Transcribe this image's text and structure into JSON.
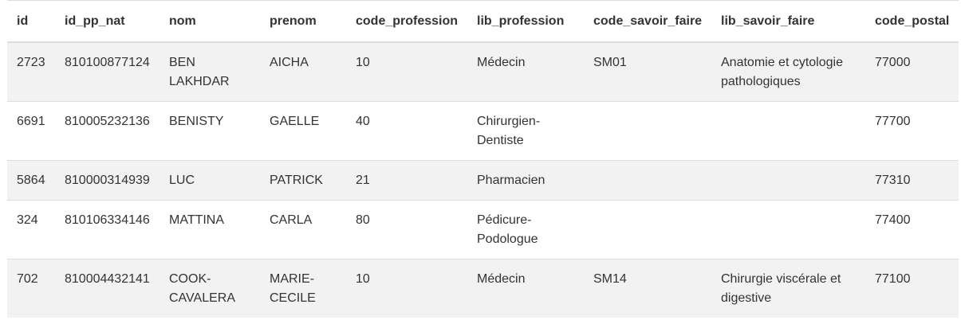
{
  "table": {
    "columns": [
      "id",
      "id_pp_nat",
      "nom",
      "prenom",
      "code_profession",
      "lib_profession",
      "code_savoir_faire",
      "lib_savoir_faire",
      "code_postal"
    ],
    "rows": [
      [
        "2723",
        "810100877124",
        "BEN LAKHDAR",
        "AICHA",
        "10",
        "Médecin",
        "SM01",
        "Anatomie et cytologie pathologiques",
        "77000"
      ],
      [
        "6691",
        "810005232136",
        "BENISTY",
        "GAELLE",
        "40",
        "Chirurgien-Dentiste",
        "",
        "",
        "77700"
      ],
      [
        "5864",
        "810000314939",
        "LUC",
        "PATRICK",
        "21",
        "Pharmacien",
        "",
        "",
        "77310"
      ],
      [
        "324",
        "810106334146",
        "MATTINA",
        "CARLA",
        "80",
        "Pédicure-Podologue",
        "",
        "",
        "77400"
      ],
      [
        "702",
        "810004432141",
        "COOK-CAVALERA",
        "MARIE-CECILE",
        "10",
        "Médecin",
        "SM14",
        "Chirurgie viscérale et digestive",
        "77100"
      ]
    ]
  },
  "colors": {
    "text": "#333333",
    "border": "#dddddd",
    "stripe": "#f2f2f2"
  }
}
